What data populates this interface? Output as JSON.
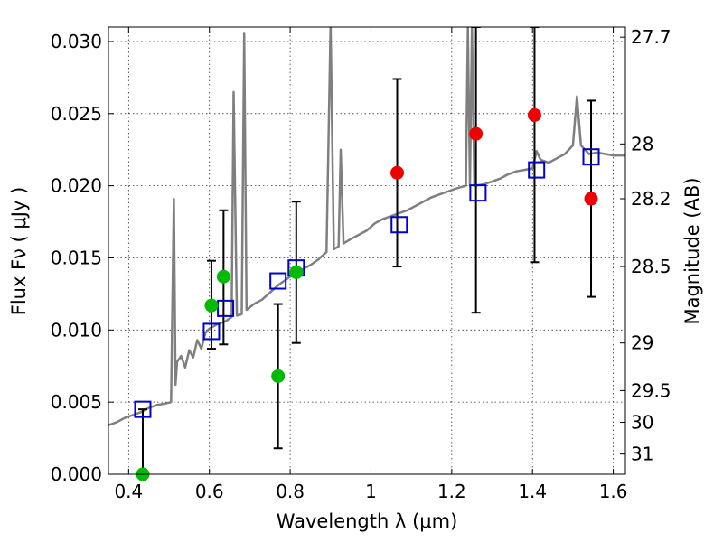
{
  "chart_data": {
    "type": "scatter",
    "xlabel": "Wavelength  λ (μm)",
    "ylabel": "Flux  Fν  ( μJy )",
    "ylabel_right": "Magnitude (AB)",
    "xlim": [
      0.35,
      1.63
    ],
    "ylim": [
      0.0,
      0.031
    ],
    "grid": true,
    "x_ticks": [
      {
        "value": 0.4,
        "label": "0.4"
      },
      {
        "value": 0.6,
        "label": "0.6"
      },
      {
        "value": 0.8,
        "label": "0.8"
      },
      {
        "value": 1.0,
        "label": "1"
      },
      {
        "value": 1.2,
        "label": "1.2"
      },
      {
        "value": 1.4,
        "label": "1.4"
      },
      {
        "value": 1.6,
        "label": "1.6"
      }
    ],
    "y_ticks": [
      {
        "value": 0.0,
        "label": "0.000"
      },
      {
        "value": 0.005,
        "label": "0.005"
      },
      {
        "value": 0.01,
        "label": "0.010"
      },
      {
        "value": 0.015,
        "label": "0.015"
      },
      {
        "value": 0.02,
        "label": "0.020"
      },
      {
        "value": 0.025,
        "label": "0.025"
      },
      {
        "value": 0.03,
        "label": "0.030"
      }
    ],
    "right_ticks": [
      {
        "flux": 0.0303,
        "label": "27.7"
      },
      {
        "flux": 0.0229,
        "label": "28"
      },
      {
        "flux": 0.0191,
        "label": "28.2"
      },
      {
        "flux": 0.0144,
        "label": "28.5"
      },
      {
        "flux": 0.0091,
        "label": "29"
      },
      {
        "flux": 0.0058,
        "label": "29.5"
      },
      {
        "flux": 0.0036,
        "label": "30"
      },
      {
        "flux": 0.0014,
        "label": "31"
      }
    ],
    "series": [
      {
        "kind": "line",
        "color": "#7f7f7f",
        "points": [
          [
            0.35,
            0.0034
          ],
          [
            0.37,
            0.0036
          ],
          [
            0.39,
            0.0039
          ],
          [
            0.41,
            0.0041
          ],
          [
            0.43,
            0.0043
          ],
          [
            0.45,
            0.0046
          ],
          [
            0.47,
            0.0048
          ],
          [
            0.49,
            0.0049
          ],
          [
            0.505,
            0.005
          ],
          [
            0.512,
            0.0191
          ],
          [
            0.516,
            0.0062
          ],
          [
            0.52,
            0.0078
          ],
          [
            0.53,
            0.0082
          ],
          [
            0.54,
            0.0074
          ],
          [
            0.55,
            0.0086
          ],
          [
            0.56,
            0.0081
          ],
          [
            0.57,
            0.0093
          ],
          [
            0.58,
            0.0087
          ],
          [
            0.59,
            0.0098
          ],
          [
            0.6,
            0.0101
          ],
          [
            0.62,
            0.0104
          ],
          [
            0.64,
            0.0106
          ],
          [
            0.655,
            0.0109
          ],
          [
            0.66,
            0.0265
          ],
          [
            0.668,
            0.011
          ],
          [
            0.68,
            0.0111
          ],
          [
            0.686,
            0.0306
          ],
          [
            0.692,
            0.0114
          ],
          [
            0.71,
            0.0118
          ],
          [
            0.73,
            0.0121
          ],
          [
            0.75,
            0.0126
          ],
          [
            0.77,
            0.0131
          ],
          [
            0.79,
            0.0135
          ],
          [
            0.81,
            0.0139
          ],
          [
            0.83,
            0.0142
          ],
          [
            0.85,
            0.0145
          ],
          [
            0.87,
            0.0149
          ],
          [
            0.89,
            0.0154
          ],
          [
            0.9,
            0.0312
          ],
          [
            0.908,
            0.0156
          ],
          [
            0.92,
            0.0158
          ],
          [
            0.925,
            0.0225
          ],
          [
            0.932,
            0.016
          ],
          [
            0.95,
            0.0163
          ],
          [
            0.97,
            0.0166
          ],
          [
            0.99,
            0.0169
          ],
          [
            1.01,
            0.0174
          ],
          [
            1.03,
            0.0177
          ],
          [
            1.05,
            0.0179
          ],
          [
            1.07,
            0.0181
          ],
          [
            1.09,
            0.0183
          ],
          [
            1.11,
            0.0186
          ],
          [
            1.13,
            0.0189
          ],
          [
            1.15,
            0.0192
          ],
          [
            1.17,
            0.0194
          ],
          [
            1.19,
            0.0196
          ],
          [
            1.21,
            0.0198
          ],
          [
            1.235,
            0.02
          ],
          [
            1.24,
            0.031
          ],
          [
            1.245,
            0.02
          ],
          [
            1.25,
            0.031
          ],
          [
            1.256,
            0.02
          ],
          [
            1.28,
            0.0201
          ],
          [
            1.3,
            0.0203
          ],
          [
            1.32,
            0.0205
          ],
          [
            1.34,
            0.0208
          ],
          [
            1.36,
            0.021
          ],
          [
            1.38,
            0.0211
          ],
          [
            1.4,
            0.0212
          ],
          [
            1.41,
            0.0224
          ],
          [
            1.42,
            0.0218
          ],
          [
            1.44,
            0.0216
          ],
          [
            1.46,
            0.0219
          ],
          [
            1.48,
            0.0222
          ],
          [
            1.5,
            0.0228
          ],
          [
            1.51,
            0.0262
          ],
          [
            1.52,
            0.0228
          ],
          [
            1.54,
            0.0222
          ],
          [
            1.56,
            0.0223
          ],
          [
            1.58,
            0.0222
          ],
          [
            1.6,
            0.0221
          ],
          [
            1.63,
            0.0221
          ]
        ]
      },
      {
        "kind": "markers",
        "marker": "open-square",
        "color": "#0000cc",
        "points": [
          [
            0.435,
            0.0045
          ],
          [
            0.605,
            0.0099
          ],
          [
            0.64,
            0.0115
          ],
          [
            0.77,
            0.0134
          ],
          [
            0.815,
            0.0143
          ],
          [
            1.07,
            0.0173
          ],
          [
            1.265,
            0.0195
          ],
          [
            1.41,
            0.0211
          ],
          [
            1.545,
            0.022
          ]
        ]
      },
      {
        "kind": "markers",
        "marker": "filled-circle",
        "color": "#00bb00",
        "points": [
          {
            "x": 0.435,
            "y": 0.0,
            "err": [
              0.0,
              0.0045
            ]
          },
          {
            "x": 0.605,
            "y": 0.0117,
            "err": [
              0.0087,
              0.0148
            ]
          },
          {
            "x": 0.635,
            "y": 0.0137,
            "err": [
              0.009,
              0.0183
            ]
          },
          {
            "x": 0.77,
            "y": 0.0068,
            "err": [
              0.0018,
              0.0118
            ]
          },
          {
            "x": 0.815,
            "y": 0.014,
            "err": [
              0.0091,
              0.0189
            ]
          }
        ]
      },
      {
        "kind": "markers",
        "marker": "filled-circle",
        "color": "#ee0000",
        "points": [
          {
            "x": 1.065,
            "y": 0.0209,
            "err": [
              0.0144,
              0.0274
            ]
          },
          {
            "x": 1.26,
            "y": 0.0236,
            "err": [
              0.0112,
              0.031
            ]
          },
          {
            "x": 1.405,
            "y": 0.0249,
            "err": [
              0.0147,
              0.031
            ]
          },
          {
            "x": 1.545,
            "y": 0.0191,
            "err": [
              0.0123,
              0.0259
            ]
          }
        ]
      }
    ]
  }
}
